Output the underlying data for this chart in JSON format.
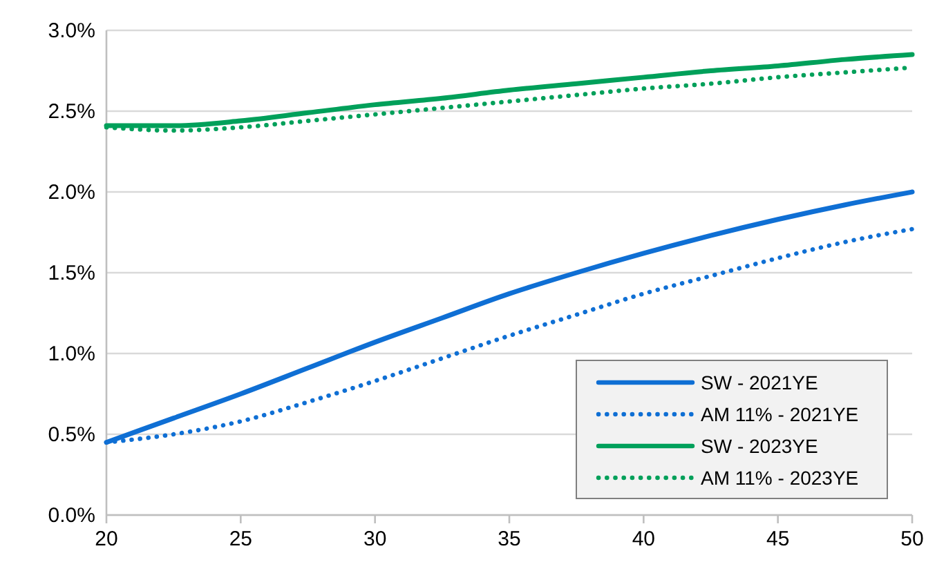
{
  "chart_data": {
    "type": "line",
    "x": [
      20,
      22.5,
      25,
      27.5,
      30,
      32.5,
      35,
      37.5,
      40,
      42.5,
      45,
      47.5,
      50
    ],
    "series": [
      {
        "name": "SW - 2021YE",
        "color": "#0f6fd4",
        "line_style": "solid",
        "values": [
          0.45,
          0.6,
          0.75,
          0.91,
          1.07,
          1.22,
          1.37,
          1.5,
          1.62,
          1.73,
          1.83,
          1.92,
          2.0
        ]
      },
      {
        "name": "AM 11% - 2021YE",
        "color": "#0f6fd4",
        "line_style": "dotted",
        "values": [
          0.45,
          0.5,
          0.58,
          0.7,
          0.83,
          0.97,
          1.11,
          1.24,
          1.37,
          1.48,
          1.59,
          1.69,
          1.77
        ]
      },
      {
        "name": "SW - 2023YE",
        "color": "#00a05a",
        "line_style": "solid",
        "values": [
          2.41,
          2.41,
          2.44,
          2.49,
          2.54,
          2.58,
          2.63,
          2.67,
          2.71,
          2.75,
          2.78,
          2.82,
          2.85
        ]
      },
      {
        "name": "AM 11% - 2023YE",
        "color": "#00a05a",
        "line_style": "dotted",
        "values": [
          2.4,
          2.38,
          2.4,
          2.44,
          2.48,
          2.52,
          2.56,
          2.6,
          2.64,
          2.67,
          2.71,
          2.74,
          2.77
        ]
      }
    ],
    "xlim": [
      20,
      50
    ],
    "xticks": [
      20,
      25,
      30,
      35,
      40,
      45,
      50
    ],
    "ylim": [
      0,
      3
    ],
    "yticks": [
      {
        "value": 0,
        "label": "0.0%"
      },
      {
        "value": 0.5,
        "label": "0.5%"
      },
      {
        "value": 1,
        "label": "1.0%"
      },
      {
        "value": 1.5,
        "label": "1.5%"
      },
      {
        "value": 2,
        "label": "2.0%"
      },
      {
        "value": 2.5,
        "label": "2.5%"
      },
      {
        "value": 3,
        "label": "3.0%"
      }
    ],
    "grid": "y",
    "legend": "bottom right",
    "marker": "none"
  }
}
